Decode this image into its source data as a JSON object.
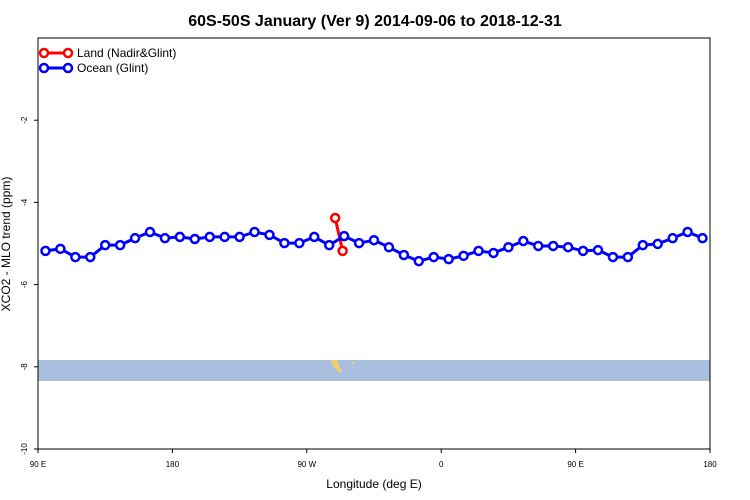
{
  "chart_data": {
    "type": "line",
    "title": "60S-50S January (Ver 9)   2014-09-06 to 2018-12-31",
    "x_label": "Longitude (deg E)",
    "y_label": "XCO2 - MLO trend (ppm)",
    "xlim": [
      90,
      540
    ],
    "ylim": [
      -10,
      0
    ],
    "xticks": [
      {
        "value": 90,
        "label": "90 E"
      },
      {
        "value": 180,
        "label": "180"
      },
      {
        "value": 270,
        "label": "90 W"
      },
      {
        "value": 360,
        "label": "0"
      },
      {
        "value": 450,
        "label": "90 E"
      },
      {
        "value": 540,
        "label": "180"
      }
    ],
    "yticks": [
      -10,
      -8,
      -6,
      -4,
      -2
    ],
    "legend": "top-left",
    "series": [
      {
        "name": "Land (Nadir&Glint)",
        "color": "#ff0000",
        "x": [
          289,
          294
        ],
        "values": [
          -4.38,
          -5.18
        ]
      },
      {
        "name": "Ocean (Glint)",
        "color": "#0000ff",
        "x": [
          95,
          105,
          115,
          125,
          135,
          145,
          155,
          165,
          175,
          185,
          195,
          205,
          215,
          225,
          235,
          245,
          255,
          265,
          275,
          285,
          295,
          305,
          315,
          325,
          335,
          345,
          355,
          365,
          375,
          385,
          395,
          405,
          415,
          425,
          435,
          445,
          455,
          465,
          475,
          485,
          495,
          505,
          515,
          525,
          535
        ],
        "values": [
          -5.18,
          -5.13,
          -5.33,
          -5.33,
          -5.04,
          -5.04,
          -4.87,
          -4.72,
          -4.87,
          -4.84,
          -4.89,
          -4.84,
          -4.84,
          -4.84,
          -4.72,
          -4.79,
          -4.99,
          -4.99,
          -4.84,
          -5.04,
          -4.82,
          -4.99,
          -4.92,
          -5.09,
          -5.28,
          -5.43,
          -5.33,
          -5.38,
          -5.3,
          -5.18,
          -5.23,
          -5.09,
          -4.94,
          -5.06,
          -5.06,
          -5.09,
          -5.18,
          -5.16,
          -5.33,
          -5.33,
          -5.04,
          -5.01,
          -4.87,
          -4.72,
          -4.87
        ]
      }
    ]
  }
}
